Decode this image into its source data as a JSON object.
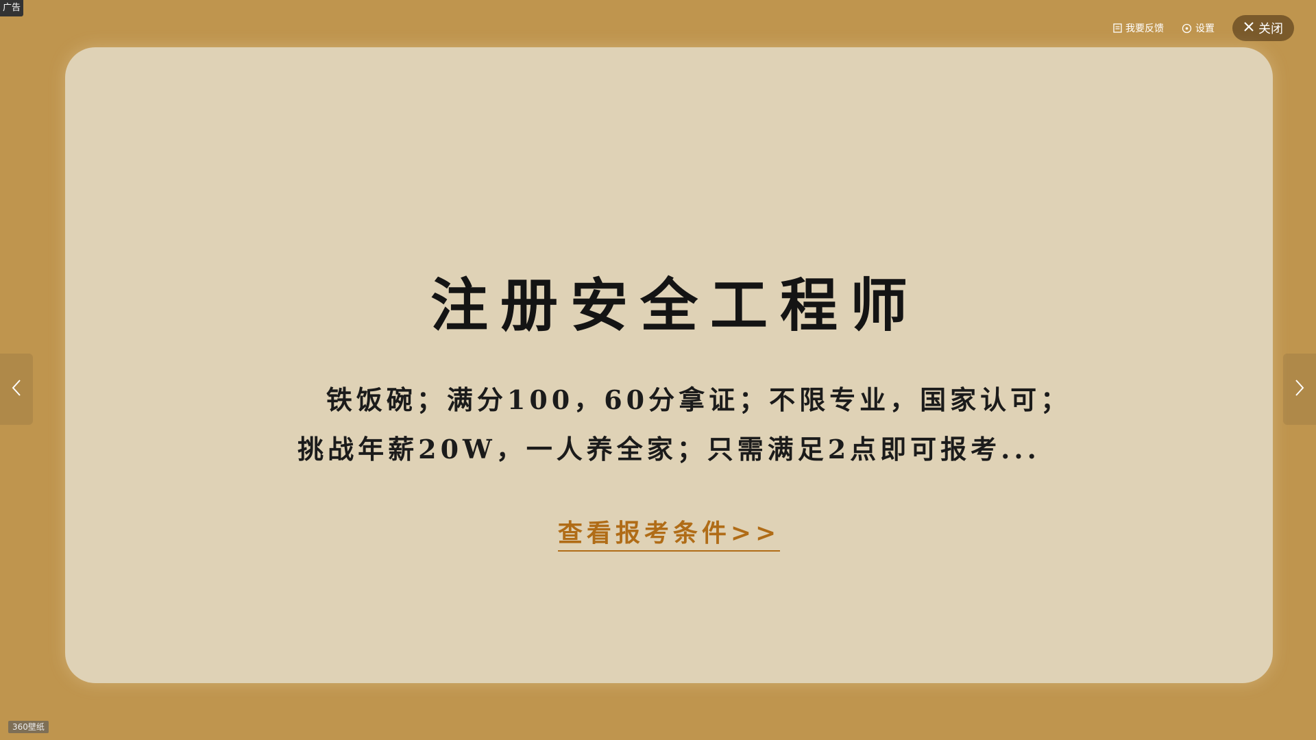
{
  "ad_badge": "广告",
  "topbar": {
    "feedback": {
      "label": "我要反馈",
      "icon": "feedback-icon"
    },
    "settings": {
      "label": "设置",
      "icon": "gear-icon"
    },
    "close": {
      "label": "关闭",
      "icon": "close-icon"
    }
  },
  "card": {
    "headline": "注册安全工程师",
    "line1": "铁饭碗；满分100，60分拿证；不限专业，国家认可；",
    "line2": "挑战年薪20W，一人养全家；只需满足2点即可报考...",
    "cta": "查看报考条件>>"
  },
  "nav": {
    "prev_icon": "chevron-left-icon",
    "next_icon": "chevron-right-icon"
  },
  "brand": "360壁纸",
  "colors": {
    "background": "#bf954e",
    "card": "#dfd2b6",
    "cta": "#b06c17",
    "close_button": "#7a5a2b"
  }
}
